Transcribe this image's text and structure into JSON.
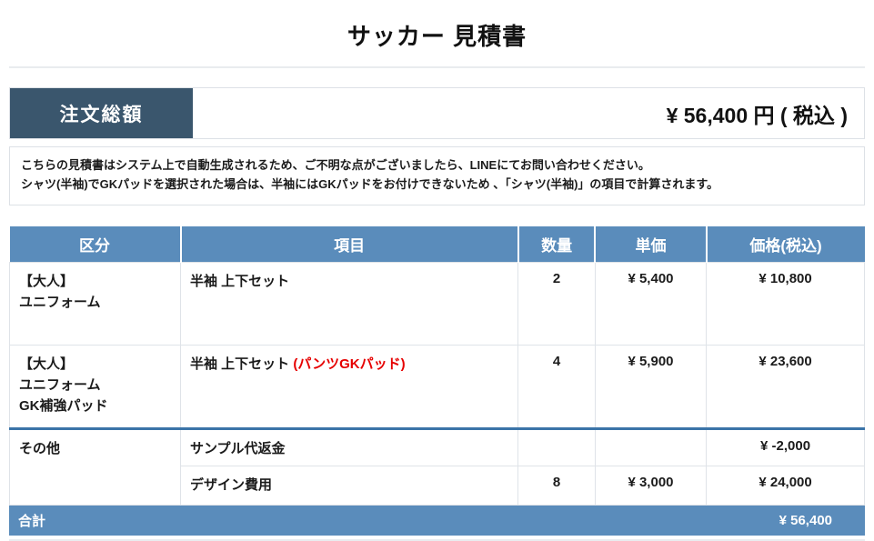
{
  "page": {
    "title": "サッカー 見積書"
  },
  "summary": {
    "label": "注文総額",
    "amount": "¥ 56,400 円 ( 税込 )"
  },
  "notice": {
    "line1": "こちらの見積書はシステム上で自動生成されるため、ご不明な点がございましたら、LINEにてお問い合わせください。",
    "line2": "シャツ(半袖)でGKパッドを選択された場合は、半袖にはGKパッドをお付けできないため 、「シャツ(半袖)」の項目で計算されます。"
  },
  "table": {
    "headers": [
      "区分",
      "項目",
      "数量",
      "単価",
      "価格(税込)"
    ],
    "rows": [
      {
        "category": "【大人】\nユニフォーム",
        "item": "半袖 上下セット",
        "item_note": "",
        "qty": "2",
        "unit_price": "¥ 5,400",
        "price": "¥ 10,800"
      },
      {
        "category": "【大人】\nユニフォーム\nGK補強パッド",
        "item": "半袖 上下セット ",
        "item_note": "(パンツGKパッド)",
        "qty": "4",
        "unit_price": "¥ 5,900",
        "price": "¥ 23,600"
      },
      {
        "category": "その他",
        "item": "サンプル代返金",
        "item_note": "",
        "qty": "",
        "unit_price": "",
        "price": "¥ -2,000"
      },
      {
        "item": "デザイン費用",
        "item_note": "",
        "qty": "8",
        "unit_price": "¥ 3,000",
        "price": "¥ 24,000"
      }
    ],
    "footer": {
      "label": "合計",
      "total": "¥ 56,400"
    }
  },
  "colors": {
    "accent_dark_navy": "#3a566d",
    "accent_table_blue": "#5a8cbb",
    "category_cell_bg": "#e9eef4",
    "section_divider_blue": "#3b74a8",
    "alert_red": "#e60000",
    "border_light": "#dfe3e8"
  }
}
